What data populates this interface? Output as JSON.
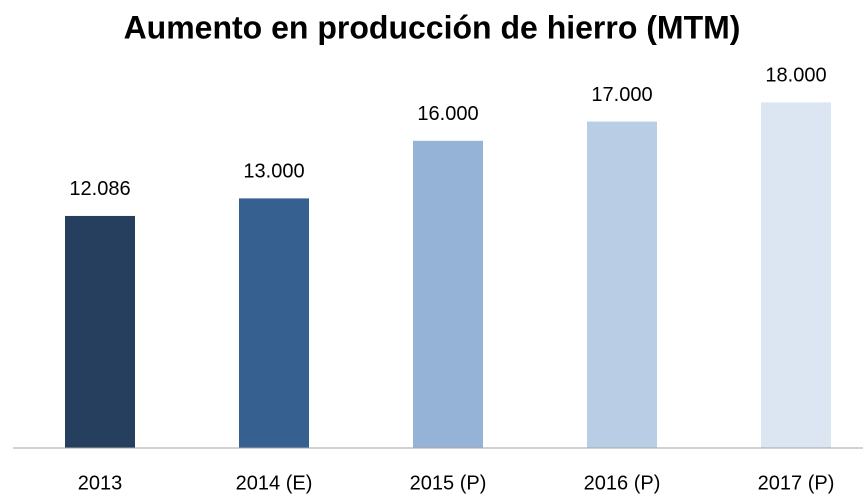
{
  "chart_data": {
    "type": "bar",
    "title": "Aumento en producción de hierro (MTM)",
    "categories": [
      "2013",
      "2014 (E)",
      "2015 (P)",
      "2016 (P)",
      "2017 (P)"
    ],
    "values": [
      12086,
      13000,
      16000,
      17000,
      18000
    ],
    "value_labels": [
      "12.086",
      "13.000",
      "16.000",
      "17.000",
      "18.000"
    ],
    "colors": [
      "#263f5e",
      "#36608f",
      "#95b3d7",
      "#b9cde5",
      "#dce6f2"
    ],
    "ylim": [
      0,
      20000
    ]
  }
}
